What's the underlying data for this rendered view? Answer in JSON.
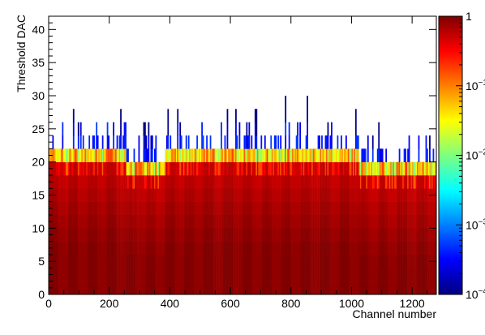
{
  "chart_data": {
    "type": "heatmap",
    "title": "",
    "xlabel": "Channel number",
    "ylabel": "Threshold DAC",
    "xlim": [
      0,
      1280
    ],
    "ylim": [
      0,
      42
    ],
    "x_ticks": [
      0,
      200,
      400,
      600,
      800,
      1000,
      1200
    ],
    "x_tick_labels": [
      "0",
      "200",
      "400",
      "600",
      "800",
      "1000",
      "1200"
    ],
    "y_ticks": [
      0,
      5,
      10,
      15,
      20,
      25,
      30,
      35,
      40
    ],
    "y_tick_labels": [
      "0",
      "5",
      "10",
      "15",
      "20",
      "25",
      "30",
      "35",
      "40"
    ],
    "colorbar": {
      "scale": "log",
      "range": [
        0.0001,
        1
      ],
      "ticks": [
        1,
        0.1,
        0.01,
        0.001,
        0.0001
      ],
      "tick_labels": [
        {
          "base": "1",
          "exp": ""
        },
        {
          "base": "10",
          "exp": "−1"
        },
        {
          "base": "10",
          "exp": "−2"
        },
        {
          "base": "10",
          "exp": "−3"
        },
        {
          "base": "10",
          "exp": "−4"
        }
      ],
      "palette": [
        "#00007f",
        "#0000ff",
        "#007fff",
        "#00ffff",
        "#7fff7f",
        "#ffff00",
        "#ff7f00",
        "#ff0000",
        "#7f0000"
      ]
    },
    "channel_groups": [
      {
        "channels": [
          0,
          256
        ],
        "top_edge_threshold": 22
      },
      {
        "channels": [
          256,
          384
        ],
        "top_edge_threshold": 20
      },
      {
        "channels": [
          384,
          768
        ],
        "top_edge_threshold": 22
      },
      {
        "channels": [
          768,
          1024
        ],
        "top_edge_threshold": 22
      },
      {
        "channels": [
          1024,
          1280
        ],
        "top_edge_threshold": 20
      }
    ],
    "max_outlier_threshold": 30
  }
}
